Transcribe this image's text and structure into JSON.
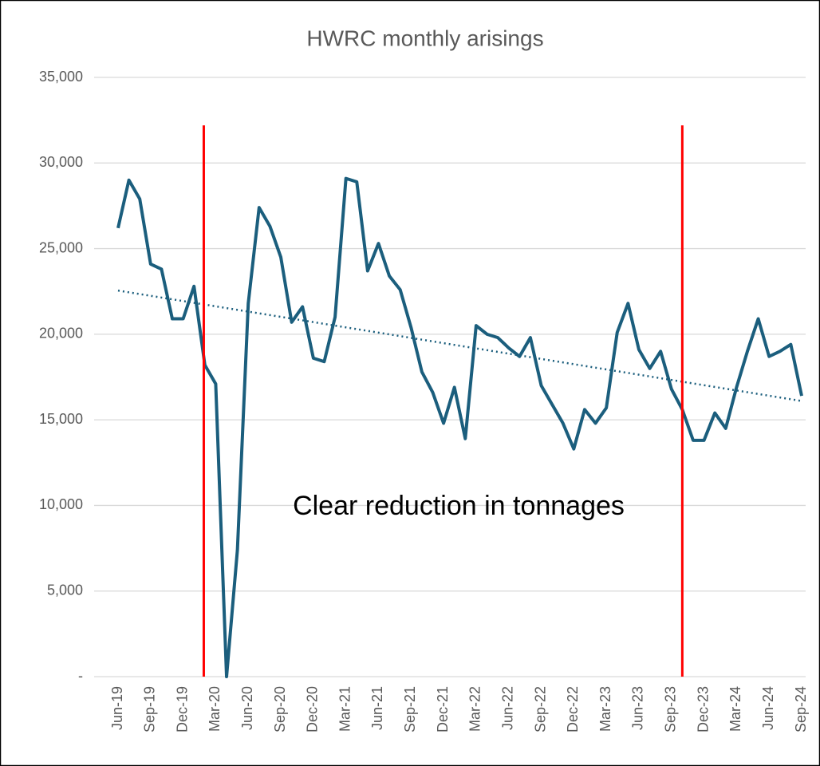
{
  "chart_data": {
    "type": "line",
    "title": "HWRC monthly arisings",
    "categories": [
      "Jun-19",
      null,
      null,
      "Sep-19",
      null,
      null,
      "Dec-19",
      null,
      null,
      "Mar-20",
      null,
      null,
      "Jun-20",
      null,
      null,
      "Sep-20",
      null,
      null,
      "Dec-20",
      null,
      null,
      "Mar-21",
      null,
      null,
      "Jun-21",
      null,
      null,
      "Sep-21",
      null,
      null,
      "Dec-21",
      null,
      null,
      "Mar-22",
      null,
      null,
      "Jun-22",
      null,
      null,
      "Sep-22",
      null,
      null,
      "Dec-22",
      null,
      null,
      "Mar-23",
      null,
      null,
      "Jun-23",
      null,
      null,
      "Sep-23",
      null,
      null,
      "Dec-23",
      null,
      null,
      "Mar-24",
      null,
      null,
      "Jun-24",
      null,
      null,
      "Sep-24"
    ],
    "series": [
      {
        "name": "HWRC monthly arisings",
        "color": "#1b5e7d",
        "values": [
          26200,
          29000,
          27900,
          24100,
          23800,
          20900,
          20900,
          22800,
          18200,
          17100,
          0,
          7400,
          21800,
          27400,
          26300,
          24500,
          20700,
          21600,
          18600,
          18400,
          21000,
          29100,
          28900,
          23700,
          25300,
          23400,
          22600,
          20400,
          17800,
          16600,
          14800,
          16900,
          13900,
          20500,
          20000,
          19800,
          19200,
          18700,
          19800,
          17000,
          15900,
          14800,
          13300,
          15600,
          14800,
          15700,
          20100,
          21800,
          19100,
          18000,
          19000,
          16800,
          15600,
          13800,
          13800,
          15400,
          14500,
          16900,
          19000,
          20900,
          18700,
          19000,
          19400,
          16400
        ]
      }
    ],
    "trendline": {
      "color": "#1b5e7d",
      "values": [
        22550,
        16100
      ]
    },
    "vlines": [
      {
        "x": 7.9,
        "y": [
          0,
          32200
        ]
      },
      {
        "x": 52,
        "y": [
          0,
          32200
        ]
      }
    ],
    "vline_color": "#ff0000",
    "annotation": "Clear reduction in tonnages",
    "ylim": [
      0,
      35000
    ],
    "yticks": [
      {
        "value": 0,
        "label": "-"
      },
      {
        "value": 5000,
        "label": "5,000"
      },
      {
        "value": 10000,
        "label": "10,000"
      },
      {
        "value": 15000,
        "label": "15,000"
      },
      {
        "value": 20000,
        "label": "20,000"
      },
      {
        "value": 25000,
        "label": "25,000"
      },
      {
        "value": 30000,
        "label": "30,000"
      },
      {
        "value": 35000,
        "label": "35,000"
      }
    ],
    "grid": true
  }
}
